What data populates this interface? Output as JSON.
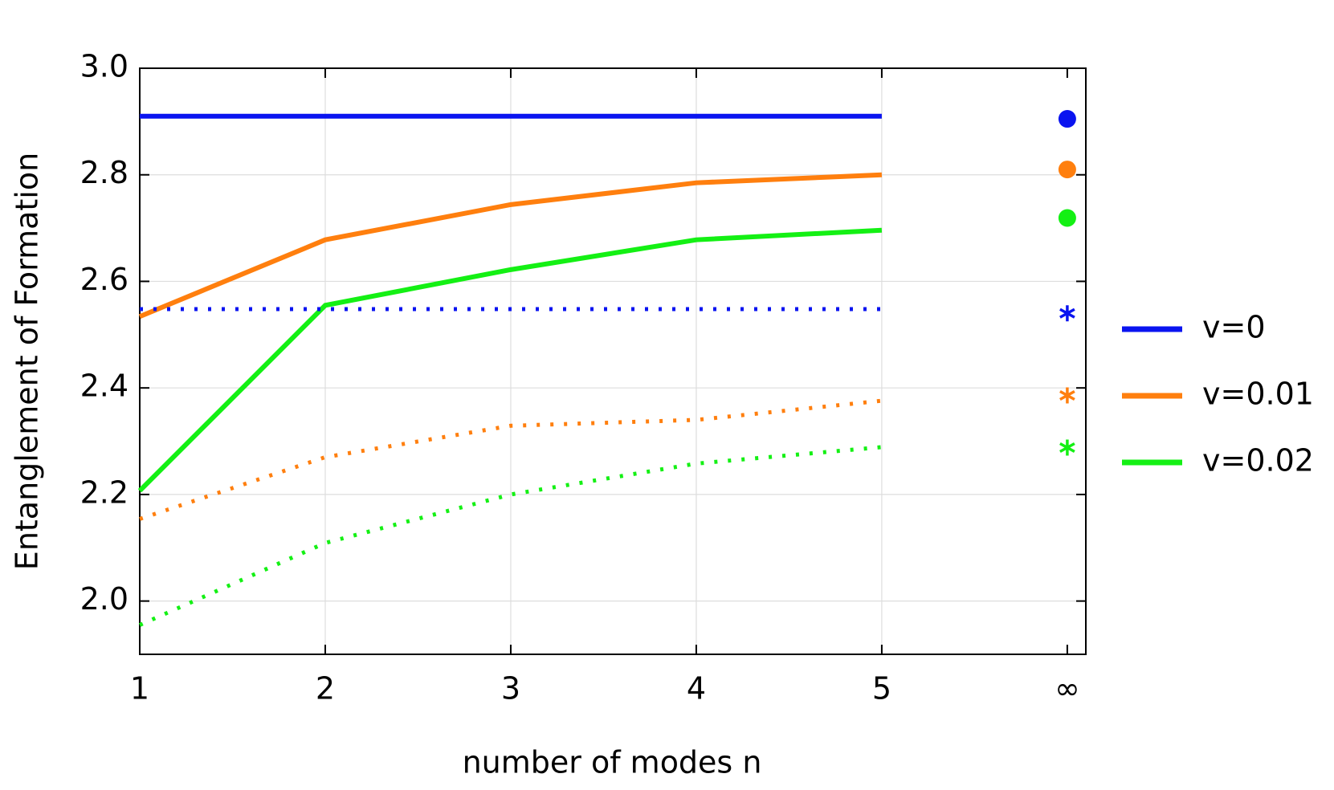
{
  "chart_data": {
    "type": "line",
    "xlabel": "number of modes n",
    "ylabel": "Entanglement of Formation",
    "xlim": [
      1,
      6.1
    ],
    "ylim": [
      1.9,
      3.0
    ],
    "xticks": [
      1,
      2,
      3,
      4,
      5,
      {
        "value": 6,
        "label": "∞"
      }
    ],
    "yticks": [
      {
        "value": 2.0,
        "label": "2.0"
      },
      2.2,
      2.4,
      2.6,
      2.8,
      {
        "value": 3.0,
        "label": "3.0"
      }
    ],
    "grid": true,
    "legend": "right",
    "x": [
      1,
      2,
      3,
      4,
      5
    ],
    "series": [
      {
        "name": "v=0",
        "color": "#0a14f0",
        "style": "solid",
        "values": [
          2.91,
          2.91,
          2.91,
          2.91,
          2.91
        ],
        "limit": 2.905,
        "limit_marker": "dot"
      },
      {
        "name": "v=0.01",
        "color": "#ff7f0e",
        "style": "solid",
        "values": [
          2.534,
          2.678,
          2.744,
          2.785,
          2.8
        ],
        "limit": 2.81,
        "limit_marker": "dot"
      },
      {
        "name": "v=0.02",
        "color": "#14f014",
        "style": "solid",
        "values": [
          2.207,
          2.555,
          2.622,
          2.678,
          2.696
        ],
        "limit": 2.719,
        "limit_marker": "dot"
      },
      {
        "color": "#0a14f0",
        "style": "dotted",
        "values": [
          2.548,
          2.548,
          2.548,
          2.548,
          2.548
        ],
        "limit": 2.54,
        "limit_marker": "star"
      },
      {
        "color": "#ff7f0e",
        "style": "dotted",
        "values": [
          2.154,
          2.27,
          2.329,
          2.34,
          2.376
        ],
        "limit": 2.386,
        "limit_marker": "star"
      },
      {
        "color": "#14f014",
        "style": "dotted",
        "values": [
          1.955,
          2.109,
          2.2,
          2.258,
          2.289
        ],
        "limit": 2.288,
        "limit_marker": "star"
      }
    ]
  }
}
